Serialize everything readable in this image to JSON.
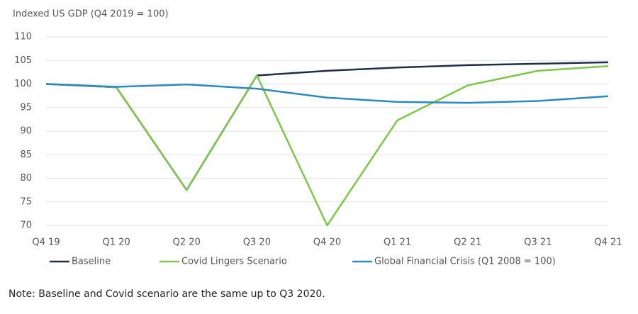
{
  "chart_data": {
    "type": "line",
    "title": "Indexed US GDP (Q4 2019 = 100)",
    "note": "Note: Baseline and Covid scenario are the same up to Q3 2020.",
    "categories": [
      "Q4 19",
      "Q1 20",
      "Q2 20",
      "Q3 20",
      "Q4 20",
      "Q1 21",
      "Q2 21",
      "Q3 21",
      "Q4 21"
    ],
    "series": [
      {
        "name": "Baseline",
        "color": "#1f2d4a",
        "values": [
          100,
          99.3,
          77.5,
          101.8,
          102.8,
          103.5,
          104,
          104.3,
          104.6
        ]
      },
      {
        "name": "Covid Lingers Scenario",
        "color": "#7cc84a",
        "values": [
          100,
          99.3,
          77.5,
          101.8,
          70,
          92.3,
          99.7,
          102.8,
          103.8
        ]
      },
      {
        "name": "Global Financial Crisis (Q1 2008 = 100)",
        "color": "#2a8ac0",
        "values": [
          100,
          99.4,
          99.9,
          99.0,
          97.1,
          96.2,
          96.0,
          96.4,
          97.4
        ]
      }
    ],
    "ylim": [
      70,
      110
    ],
    "yticks": [
      70,
      75,
      80,
      85,
      90,
      95,
      100,
      105,
      110
    ],
    "grid": true,
    "legend": "bottom"
  }
}
